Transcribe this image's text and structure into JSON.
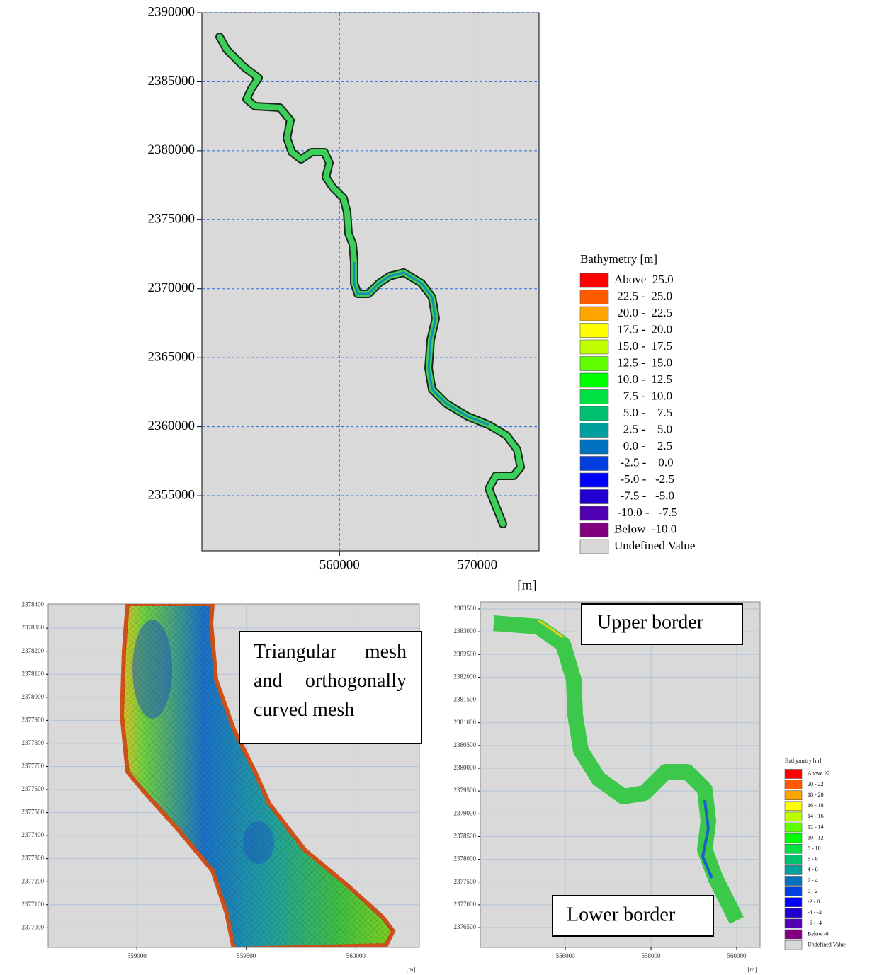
{
  "chart_data": [
    {
      "type": "map",
      "xlim": [
        550000,
        574500
      ],
      "ylim": [
        2351000,
        2390000
      ],
      "xticks": [
        560000,
        570000
      ],
      "yticks": [
        2355000,
        2360000,
        2365000,
        2370000,
        2375000,
        2380000,
        2385000,
        2390000
      ],
      "grid": true,
      "xlabel": "[m]",
      "legend": {
        "title": "Bathymetry [m]",
        "entries": [
          {
            "label": "Above  25.0",
            "color": "#ff0000"
          },
          {
            "label": " 22.5 -  25.0",
            "color": "#ff5a00"
          },
          {
            "label": " 20.0 -  22.5",
            "color": "#ffa500"
          },
          {
            "label": " 17.5 -  20.0",
            "color": "#ffff00"
          },
          {
            "label": " 15.0 -  17.5",
            "color": "#c0ff00"
          },
          {
            "label": " 12.5 -  15.0",
            "color": "#60ff00"
          },
          {
            "label": " 10.0 -  12.5",
            "color": "#00ff00"
          },
          {
            "label": "   7.5 -  10.0",
            "color": "#00e040"
          },
          {
            "label": "   5.0 -    7.5",
            "color": "#00c070"
          },
          {
            "label": "   2.5 -    5.0",
            "color": "#00a0a0"
          },
          {
            "label": "   0.0 -    2.5",
            "color": "#0070c0"
          },
          {
            "label": "  -2.5 -    0.0",
            "color": "#0040e0"
          },
          {
            "label": "  -5.0 -   -2.5",
            "color": "#0000ff"
          },
          {
            "label": "  -7.5 -   -5.0",
            "color": "#2000d0"
          },
          {
            "label": " -10.0 -   -7.5",
            "color": "#5000b0"
          },
          {
            "label": "Below  -10.0",
            "color": "#800080"
          },
          {
            "label": "Undefined Value",
            "color": "#d8d8d8"
          }
        ]
      }
    },
    {
      "type": "map",
      "xlim": [
        558595,
        560290
      ],
      "ylim": [
        2376915,
        2378405
      ],
      "xticks": [
        559000,
        559500,
        560000
      ],
      "yticks": [
        2377000,
        2377100,
        2377200,
        2377300,
        2377400,
        2377500,
        2377600,
        2377700,
        2377800,
        2377900,
        2378000,
        2378100,
        2378200,
        2378300,
        2378400
      ],
      "grid": true,
      "xlabel": "[m]",
      "annotations": [
        "Triangular mesh and orthogonally curved mesh"
      ]
    },
    {
      "type": "map",
      "xlim": [
        554015,
        560545
      ],
      "ylim": [
        2376065,
        2383655
      ],
      "xticks": [
        556000,
        558000,
        560000
      ],
      "yticks": [
        2376500,
        2377000,
        2377500,
        2378000,
        2378500,
        2379000,
        2379500,
        2380000,
        2380500,
        2381000,
        2381500,
        2382000,
        2382500,
        2383000,
        2383500
      ],
      "grid": true,
      "xlabel": "[m]",
      "annotations": [
        "Upper border",
        "Lower border"
      ],
      "legend": {
        "title": "Bathymetry [m]",
        "entries": [
          {
            "label": "Above 22",
            "color": "#ff0000"
          },
          {
            "label": "20 - 22",
            "color": "#ff5a00"
          },
          {
            "label": "18 - 20",
            "color": "#ffa500"
          },
          {
            "label": "16 - 18",
            "color": "#ffff00"
          },
          {
            "label": "14 - 16",
            "color": "#c0ff00"
          },
          {
            "label": "12 - 14",
            "color": "#60ff00"
          },
          {
            "label": "10 - 12",
            "color": "#00ff00"
          },
          {
            "label": "8 - 10",
            "color": "#00e040"
          },
          {
            "label": "6 - 8",
            "color": "#00c070"
          },
          {
            "label": "4 - 6",
            "color": "#00a0a0"
          },
          {
            "label": "2 - 4",
            "color": "#0070c0"
          },
          {
            "label": "0 - 2",
            "color": "#0040e0"
          },
          {
            "label": "-2 - 0",
            "color": "#0000ff"
          },
          {
            "label": "-4 - -2",
            "color": "#2000d0"
          },
          {
            "label": "-6 - -4",
            "color": "#5000b0"
          },
          {
            "label": "Below -6",
            "color": "#800080"
          },
          {
            "label": "Undefined Value",
            "color": "#d8d8d8"
          }
        ]
      }
    }
  ]
}
